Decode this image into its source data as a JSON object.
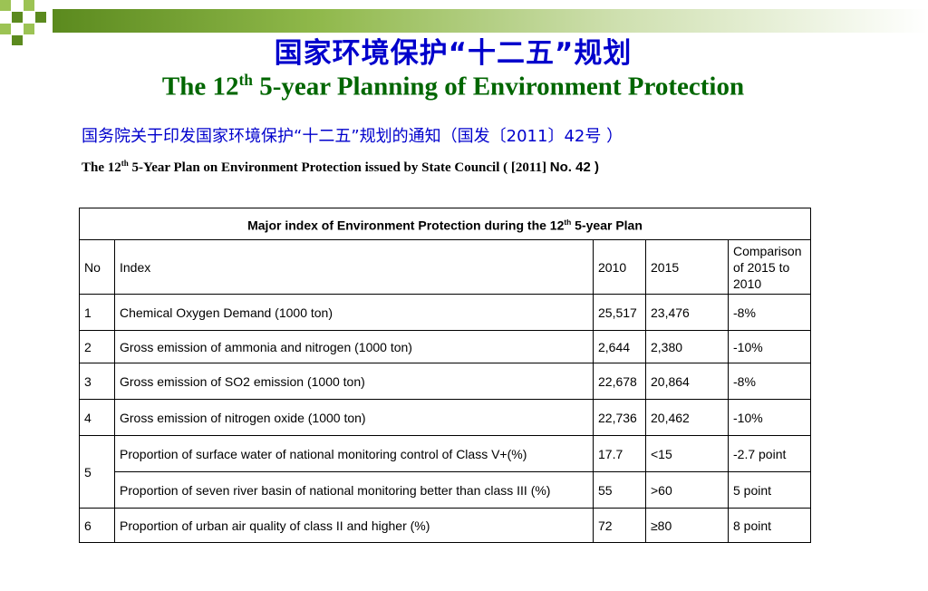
{
  "title_zh": "国家环境保护“十二五”规划",
  "title_en": {
    "pre": "The 12",
    "sup": "th",
    "post": " 5-year Planning of Environment Protection"
  },
  "subtitle_zh": "国务院关于印发国家环境保护“十二五”规划的通知（国发〔2011〕42号 ）",
  "subtitle_en": {
    "pre": "The 12",
    "sup": "th",
    "mid": " 5-Year Plan on Environment Protection issued by State Council ( [2011] ",
    "no": "No. 42 )"
  },
  "table": {
    "caption": {
      "pre": "Major index of Environment Protection during the 12",
      "sup": "th",
      "post": " 5-year Plan"
    },
    "headers": {
      "no": "No",
      "index": "Index",
      "y2010": "2010",
      "y2015": "2015",
      "comparison": "Comparison of 2015 to 2010"
    },
    "rows": [
      {
        "no": "1",
        "index": "Chemical Oxygen Demand (1000 ton)",
        "y2010": "25,517",
        "y2015": "23,476",
        "comparison": "-8%"
      },
      {
        "no": "2",
        "index": "Gross emission of ammonia and nitrogen (1000 ton)",
        "y2010": "2,644",
        "y2015": "2,380",
        "comparison": "-10%"
      },
      {
        "no": "3",
        "index": "Gross emission of SO2 emission (1000 ton)",
        "y2010": "22,678",
        "y2015": "20,864",
        "comparison": "-8%"
      },
      {
        "no": "4",
        "index": "Gross emission of nitrogen oxide (1000 ton)",
        "y2010": "22,736",
        "y2015": "20,462",
        "comparison": "-10%"
      },
      {
        "no": "5",
        "index": "Proportion of surface water of national monitoring control  of Class V+(%)",
        "y2010": "17.7",
        "y2015": "<15",
        "comparison": "-2.7 point"
      },
      {
        "no": "",
        "index": "Proportion of seven river basin of national monitoring better than class III (%)",
        "y2010": "55",
        "y2015": ">60",
        "comparison": "5 point"
      },
      {
        "no": "6",
        "index": "Proportion of urban air quality of class II and higher (%)",
        "y2010": "72",
        "y2015": "≥80",
        "comparison": "8 point"
      }
    ]
  },
  "colors": {
    "title_zh": "#0000cc",
    "title_en": "#006600",
    "accent_green": "#5b8a1e",
    "light_green": "#9cc354"
  }
}
